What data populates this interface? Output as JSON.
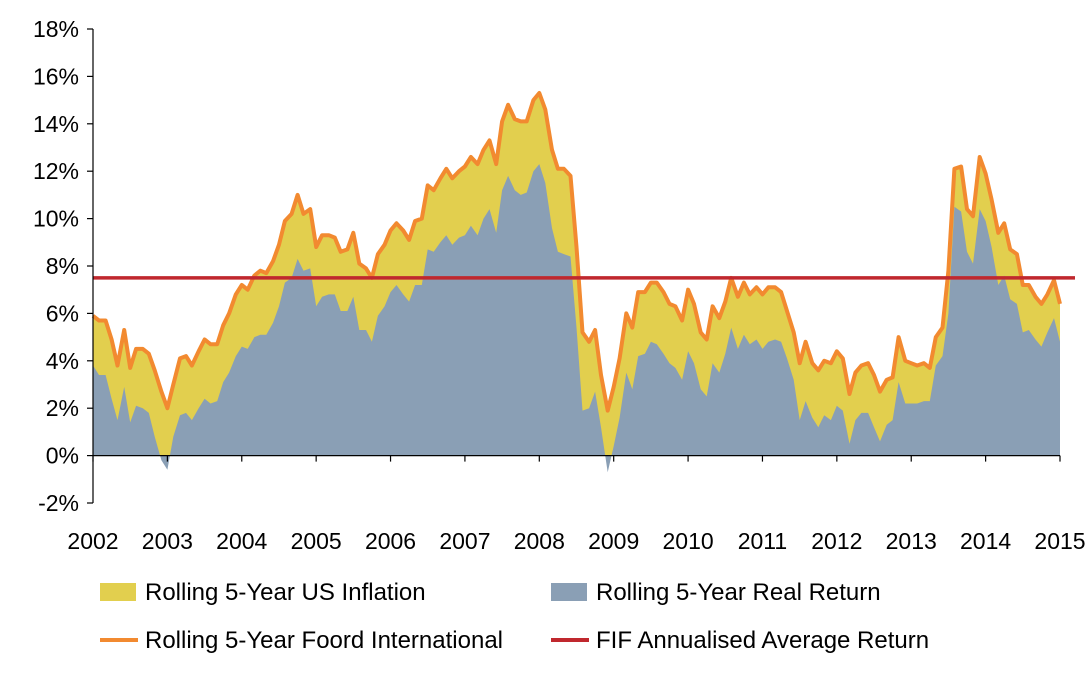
{
  "chart_data": {
    "type": "area",
    "xlabel": "",
    "ylabel": "",
    "x_axis": {
      "min": 2002,
      "max": 2015,
      "ticks": [
        "2002",
        "2003",
        "2004",
        "2005",
        "2006",
        "2007",
        "2008",
        "2009",
        "2010",
        "2011",
        "2012",
        "2013",
        "2014",
        "2015"
      ]
    },
    "y_axis": {
      "min": -2,
      "max": 18,
      "ticks": [
        "-2%",
        "0%",
        "2%",
        "4%",
        "6%",
        "8%",
        "10%",
        "12%",
        "14%",
        "16%",
        "18%"
      ]
    },
    "grid": false,
    "legend_position": "bottom",
    "x": [
      2002.0,
      2002.08,
      2002.17,
      2002.25,
      2002.33,
      2002.42,
      2002.5,
      2002.58,
      2002.67,
      2002.75,
      2002.83,
      2002.92,
      2003.0,
      2003.08,
      2003.17,
      2003.25,
      2003.33,
      2003.42,
      2003.5,
      2003.58,
      2003.67,
      2003.75,
      2003.83,
      2003.92,
      2004.0,
      2004.08,
      2004.17,
      2004.25,
      2004.33,
      2004.42,
      2004.5,
      2004.58,
      2004.67,
      2004.75,
      2004.83,
      2004.92,
      2005.0,
      2005.08,
      2005.17,
      2005.25,
      2005.33,
      2005.42,
      2005.5,
      2005.58,
      2005.67,
      2005.75,
      2005.83,
      2005.92,
      2006.0,
      2006.08,
      2006.17,
      2006.25,
      2006.33,
      2006.42,
      2006.5,
      2006.58,
      2006.67,
      2006.75,
      2006.83,
      2006.92,
      2007.0,
      2007.08,
      2007.17,
      2007.25,
      2007.33,
      2007.42,
      2007.5,
      2007.58,
      2007.67,
      2007.75,
      2007.83,
      2007.92,
      2008.0,
      2008.08,
      2008.17,
      2008.25,
      2008.33,
      2008.42,
      2008.5,
      2008.58,
      2008.67,
      2008.75,
      2008.83,
      2008.92,
      2009.0,
      2009.08,
      2009.17,
      2009.25,
      2009.33,
      2009.42,
      2009.5,
      2009.58,
      2009.67,
      2009.75,
      2009.83,
      2009.92,
      2010.0,
      2010.08,
      2010.17,
      2010.25,
      2010.33,
      2010.42,
      2010.5,
      2010.58,
      2010.67,
      2010.75,
      2010.83,
      2010.92,
      2011.0,
      2011.08,
      2011.17,
      2011.25,
      2011.33,
      2011.42,
      2011.5,
      2011.58,
      2011.67,
      2011.75,
      2011.83,
      2011.92,
      2012.0,
      2012.08,
      2012.17,
      2012.25,
      2012.33,
      2012.42,
      2012.5,
      2012.58,
      2012.67,
      2012.75,
      2012.83,
      2012.92,
      2013.0,
      2013.08,
      2013.17,
      2013.25,
      2013.33,
      2013.42,
      2013.5,
      2013.58,
      2013.67,
      2013.75,
      2013.83,
      2013.92,
      2014.0,
      2014.08,
      2014.17,
      2014.25,
      2014.33,
      2014.42,
      2014.5,
      2014.58,
      2014.67,
      2014.75,
      2014.83,
      2014.92,
      2015.0
    ],
    "series": [
      {
        "name": "Rolling 5-Year Foord International",
        "render": "line",
        "color": "#F28A30",
        "values": [
          5.9,
          5.7,
          5.7,
          4.9,
          3.8,
          5.3,
          3.7,
          4.5,
          4.5,
          4.3,
          3.6,
          2.7,
          2.0,
          3.0,
          4.1,
          4.2,
          3.8,
          4.4,
          4.9,
          4.7,
          4.7,
          5.5,
          6.0,
          6.8,
          7.2,
          7.0,
          7.6,
          7.8,
          7.7,
          8.2,
          8.9,
          9.9,
          10.2,
          11.0,
          10.2,
          10.4,
          8.8,
          9.3,
          9.3,
          9.2,
          8.6,
          8.7,
          9.4,
          8.1,
          7.9,
          7.5,
          8.5,
          8.9,
          9.5,
          9.8,
          9.5,
          9.1,
          9.9,
          10.0,
          11.4,
          11.2,
          11.7,
          12.1,
          11.7,
          12.0,
          12.2,
          12.6,
          12.3,
          12.9,
          13.3,
          12.3,
          14.1,
          14.8,
          14.2,
          14.1,
          14.1,
          15.0,
          15.3,
          14.6,
          12.9,
          12.1,
          12.1,
          11.8,
          8.8,
          5.2,
          4.8,
          5.3,
          3.4,
          1.9,
          2.9,
          4.1,
          6.0,
          5.4,
          6.9,
          6.9,
          7.3,
          7.3,
          6.9,
          6.4,
          6.3,
          5.7,
          7.0,
          6.4,
          5.2,
          4.9,
          6.3,
          5.8,
          6.5,
          7.5,
          6.7,
          7.3,
          6.8,
          7.1,
          6.8,
          7.1,
          7.1,
          6.9,
          6.1,
          5.2,
          3.9,
          4.8,
          3.9,
          3.6,
          4.0,
          3.9,
          4.4,
          4.1,
          2.6,
          3.5,
          3.8,
          3.9,
          3.4,
          2.7,
          3.2,
          3.3,
          5.0,
          4.0,
          3.9,
          3.8,
          3.9,
          3.7,
          5.0,
          5.4,
          7.8,
          12.1,
          12.2,
          10.4,
          10.1,
          12.6,
          11.9,
          10.8,
          9.4,
          9.8,
          8.7,
          8.5,
          7.2,
          7.2,
          6.7,
          6.4,
          6.8,
          7.4,
          6.4
        ]
      },
      {
        "name": "Rolling 5-Year Real Return",
        "render": "area",
        "color": "#8A9FB5",
        "values": [
          3.8,
          3.4,
          3.4,
          2.4,
          1.5,
          2.9,
          1.4,
          2.1,
          2.0,
          1.8,
          0.8,
          -0.2,
          -0.6,
          0.8,
          1.7,
          1.8,
          1.5,
          2.0,
          2.4,
          2.2,
          2.3,
          3.1,
          3.5,
          4.2,
          4.6,
          4.5,
          5.0,
          5.1,
          5.1,
          5.6,
          6.3,
          7.3,
          7.5,
          8.3,
          7.8,
          7.9,
          6.3,
          6.7,
          6.8,
          6.8,
          6.1,
          6.1,
          6.7,
          5.3,
          5.3,
          4.8,
          5.9,
          6.3,
          6.9,
          7.2,
          6.8,
          6.5,
          7.2,
          7.2,
          8.7,
          8.6,
          9.0,
          9.3,
          8.9,
          9.2,
          9.3,
          9.7,
          9.3,
          10.0,
          10.4,
          9.4,
          11.2,
          11.8,
          11.2,
          11.0,
          11.1,
          12.0,
          12.3,
          11.5,
          9.6,
          8.6,
          8.5,
          8.4,
          5.4,
          1.9,
          2.0,
          2.7,
          1.2,
          -0.7,
          0.4,
          1.6,
          3.5,
          2.8,
          4.2,
          4.3,
          4.8,
          4.7,
          4.3,
          3.9,
          3.7,
          3.2,
          4.4,
          3.9,
          2.8,
          2.5,
          3.9,
          3.5,
          4.3,
          5.4,
          4.5,
          5.1,
          4.7,
          4.9,
          4.5,
          4.8,
          4.9,
          4.8,
          4.1,
          3.2,
          1.5,
          2.3,
          1.6,
          1.2,
          1.7,
          1.5,
          2.1,
          1.9,
          0.5,
          1.5,
          1.8,
          1.8,
          1.2,
          0.6,
          1.3,
          1.5,
          3.1,
          2.2,
          2.2,
          2.2,
          2.3,
          2.3,
          3.8,
          4.2,
          6.0,
          10.5,
          10.3,
          8.6,
          8.1,
          10.4,
          9.9,
          8.8,
          7.2,
          7.6,
          6.6,
          6.4,
          5.2,
          5.3,
          4.9,
          4.6,
          5.2,
          5.8,
          4.8
        ]
      },
      {
        "name": "Rolling 5-Year US Inflation",
        "render": "area-between",
        "color": "#E2CF4E"
      },
      {
        "name": "FIF Annualised Average Return",
        "render": "hline",
        "color": "#C0282E",
        "value": 7.5
      }
    ]
  },
  "legend": {
    "inflation": "Rolling 5-Year US Inflation",
    "real": "Rolling 5-Year Real Return",
    "foord": "Rolling 5-Year Foord International",
    "fif": "FIF Annualised Average Return"
  }
}
